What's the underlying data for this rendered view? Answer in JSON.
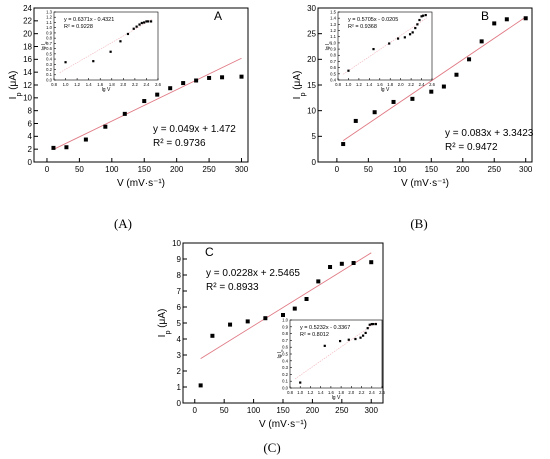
{
  "colors": {
    "marker": "#000000",
    "fit_line": "#e07a85",
    "inset_fit_line": "#f0b0b8",
    "frame": "#000000"
  },
  "chart_data": [
    {
      "id": "A",
      "type": "scatter",
      "panel_label": "A",
      "caption": "(A)",
      "xlabel": "V (mV·s⁻¹)",
      "ylabel": "Ip (μA)",
      "xlim": [
        -20,
        310
      ],
      "ylim": [
        0,
        24
      ],
      "xticks": [
        0,
        50,
        100,
        150,
        200,
        250,
        300
      ],
      "yticks": [
        0,
        2,
        4,
        6,
        8,
        10,
        12,
        14,
        16,
        18,
        20,
        22,
        24
      ],
      "grid": false,
      "series": [
        {
          "x": [
            10,
            30,
            60,
            90,
            120,
            150,
            170,
            190,
            210,
            230,
            250,
            270,
            300
          ],
          "y": [
            2.2,
            2.3,
            3.5,
            5.5,
            7.5,
            9.5,
            10.5,
            11.5,
            12.3,
            12.7,
            13.1,
            13.2,
            13.3
          ]
        }
      ],
      "fit": {
        "slope": 0.049,
        "intercept": 1.472,
        "x_range": [
          10,
          300
        ]
      },
      "equation": "y = 0.049x + 1.472",
      "r2_label": "R² = 0.9736",
      "inset": {
        "xlabel": "lg V",
        "ylabel": "lg Ip",
        "xlim": [
          0.8,
          2.6
        ],
        "ylim": [
          0,
          1.3
        ],
        "xticks": [
          0.8,
          1.0,
          1.2,
          1.4,
          1.6,
          1.8,
          2.0,
          2.2,
          2.4,
          2.6
        ],
        "yticks": [
          0.0,
          0.1,
          0.2,
          0.3,
          0.4,
          0.5,
          0.6,
          0.7,
          0.8,
          0.9,
          1.0,
          1.1,
          1.2,
          1.3
        ],
        "x": [
          1.0,
          1.48,
          1.78,
          1.95,
          2.08,
          2.18,
          2.23,
          2.28,
          2.32,
          2.36,
          2.4,
          2.43,
          2.48
        ],
        "y": [
          0.34,
          0.36,
          0.54,
          0.74,
          0.88,
          0.98,
          1.02,
          1.06,
          1.09,
          1.1,
          1.12,
          1.12,
          1.12
        ],
        "fit": {
          "slope": 0.6371,
          "intercept": -0.4321,
          "x_range": [
            0.9,
            2.5
          ]
        },
        "equation": "y = 0.6371x - 0.4321",
        "r2_label": "R² = 0.9228"
      }
    },
    {
      "id": "B",
      "type": "scatter",
      "panel_label": "B",
      "caption": "(B)",
      "xlabel": "V (mV·s⁻¹)",
      "ylabel": "Ip (μA)",
      "xlim": [
        -30,
        310
      ],
      "ylim": [
        0,
        30
      ],
      "xticks": [
        0,
        50,
        100,
        150,
        200,
        250,
        300
      ],
      "yticks": [
        0,
        5,
        10,
        15,
        20,
        25,
        30
      ],
      "grid": false,
      "series": [
        {
          "x": [
            10,
            30,
            60,
            90,
            120,
            150,
            170,
            190,
            210,
            230,
            250,
            270,
            300
          ],
          "y": [
            3.5,
            8,
            9.7,
            11.7,
            12.3,
            13.7,
            14.7,
            17,
            20,
            23.5,
            27,
            27.8,
            28
          ]
        }
      ],
      "fit": {
        "slope": 0.083,
        "intercept": 3.3423,
        "x_range": [
          10,
          300
        ]
      },
      "equation": "y = 0.083x + 3.3423",
      "r2_label": "R² = 0.9472",
      "inset": {
        "xlabel": "lg V",
        "ylabel": "lg Ip",
        "xlim": [
          0.8,
          2.6
        ],
        "ylim": [
          0.4,
          1.5
        ],
        "xticks": [
          0.8,
          1.0,
          1.2,
          1.4,
          1.6,
          1.8,
          2.0,
          2.2,
          2.4,
          2.6
        ],
        "yticks": [
          0.4,
          0.5,
          0.6,
          0.7,
          0.8,
          0.9,
          1.0,
          1.1,
          1.2,
          1.3,
          1.4,
          1.5
        ],
        "x": [
          1.0,
          1.48,
          1.78,
          1.95,
          2.08,
          2.18,
          2.23,
          2.28,
          2.32,
          2.36,
          2.4,
          2.43,
          2.48
        ],
        "y": [
          0.55,
          0.9,
          0.99,
          1.07,
          1.09,
          1.14,
          1.17,
          1.24,
          1.3,
          1.37,
          1.43,
          1.44,
          1.45
        ],
        "fit": {
          "slope": 0.5705,
          "intercept": -0.0205,
          "x_range": [
            0.9,
            2.5
          ]
        },
        "equation": "y = 0.5705x - 0.0205",
        "r2_label": "R² = 0.9368"
      }
    },
    {
      "id": "C",
      "type": "scatter",
      "panel_label": "C",
      "caption": "(C)",
      "xlabel": "V (mV·s⁻¹)",
      "ylabel": "Ip (μA)",
      "xlim": [
        -20,
        320
      ],
      "ylim": [
        0,
        10
      ],
      "xticks": [
        0,
        50,
        100,
        150,
        200,
        250,
        300
      ],
      "yticks": [
        0,
        1,
        2,
        3,
        4,
        5,
        6,
        7,
        8,
        9,
        10
      ],
      "grid": false,
      "series": [
        {
          "x": [
            10,
            30,
            60,
            90,
            120,
            150,
            170,
            190,
            210,
            230,
            250,
            270,
            300
          ],
          "y": [
            1.1,
            4.2,
            4.9,
            5.1,
            5.3,
            5.5,
            5.9,
            6.5,
            7.6,
            8.5,
            8.7,
            8.75,
            8.8
          ]
        }
      ],
      "fit": {
        "slope": 0.0228,
        "intercept": 2.5465,
        "x_range": [
          10,
          300
        ]
      },
      "equation": "y = 0.0228x + 2.5465",
      "r2_label": "R² = 0.8933",
      "inset": {
        "xlabel": "lg V",
        "ylabel": "lg Ip",
        "xlim": [
          0.8,
          2.6
        ],
        "ylim": [
          0,
          1
        ],
        "xticks": [
          0.8,
          1.0,
          1.2,
          1.4,
          1.6,
          1.8,
          2.0,
          2.2,
          2.4,
          2.6
        ],
        "yticks": [
          0.0,
          0.1,
          0.2,
          0.3,
          0.4,
          0.5,
          0.6,
          0.7,
          0.8,
          0.9,
          1.0
        ],
        "x": [
          1.0,
          1.48,
          1.78,
          1.95,
          2.08,
          2.18,
          2.23,
          2.28,
          2.32,
          2.36,
          2.4,
          2.43,
          2.48
        ],
        "y": [
          0.08,
          0.62,
          0.69,
          0.71,
          0.72,
          0.74,
          0.77,
          0.81,
          0.88,
          0.93,
          0.94,
          0.94,
          0.94
        ],
        "fit": {
          "slope": 0.5232,
          "intercept": -0.3367,
          "x_range": [
            0.9,
            2.5
          ]
        },
        "equation": "y = 0.5232x - 0.3367",
        "r2_label": "R² = 0.8012"
      }
    }
  ]
}
